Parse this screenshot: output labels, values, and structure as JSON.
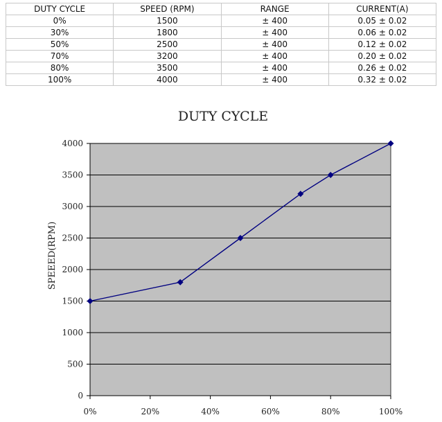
{
  "table": {
    "headers": [
      "DUTY CYCLE",
      "SPEED (RPM)",
      "RANGE",
      "CURRENT(A)"
    ],
    "rows": [
      [
        "0%",
        "1500",
        "± 400",
        "0.05 ± 0.02"
      ],
      [
        "30%",
        "1800",
        "± 400",
        "0.06 ± 0.02"
      ],
      [
        "50%",
        "2500",
        "± 400",
        "0.12 ± 0.02"
      ],
      [
        "70%",
        "3200",
        "± 400",
        "0.20 ± 0.02"
      ],
      [
        "80%",
        "3500",
        "± 400",
        "0.26 ± 0.02"
      ],
      [
        "100%",
        "4000",
        "± 400",
        "0.32 ± 0.02"
      ]
    ]
  },
  "chart_data": {
    "type": "line",
    "title": "DUTY CYCLE",
    "xlabel": "",
    "ylabel": "SPEEED(RPM)",
    "x": [
      0,
      30,
      50,
      70,
      80,
      100
    ],
    "series": [
      {
        "values": [
          1500,
          1800,
          2500,
          3200,
          3500,
          4000
        ]
      }
    ],
    "xlim": [
      0,
      100
    ],
    "ylim": [
      0,
      4000
    ],
    "xticks": [
      0,
      20,
      40,
      60,
      80,
      100
    ],
    "xtick_labels": [
      "0%",
      "20%",
      "40%",
      "60%",
      "80%",
      "100%"
    ],
    "yticks": [
      0,
      500,
      1000,
      1500,
      2000,
      2500,
      3000,
      3500,
      4000
    ],
    "ytick_labels": [
      "0",
      "500",
      "1000",
      "1500",
      "2000",
      "2500",
      "3000",
      "3500",
      "4000"
    ],
    "grid": "horizontal",
    "legend": "none",
    "colors": {
      "plot_bg": "#c0c0c0",
      "line": "#000080",
      "marker": "#000080",
      "grid": "#000000"
    }
  }
}
